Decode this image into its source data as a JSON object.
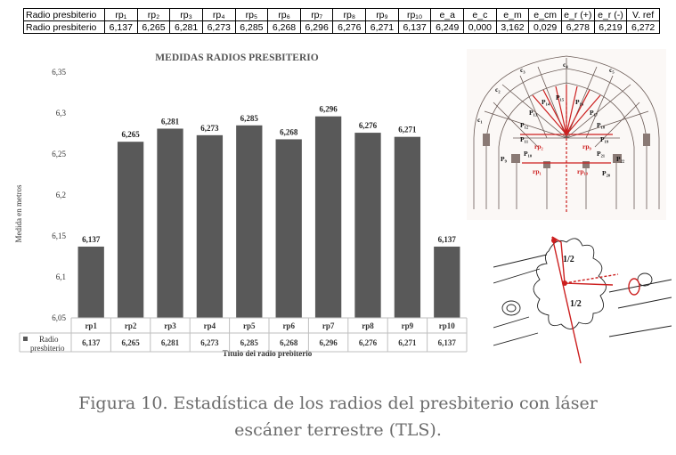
{
  "stats_table": {
    "headers": [
      "Radio presbiterio",
      "rp₁",
      "rp₂",
      "rp₃",
      "rp₄",
      "rp₅",
      "rp₆",
      "rp₇",
      "rp₈",
      "rp₉",
      "rp₁₀",
      "e_a",
      "e_c",
      "e_m",
      "e_cm",
      "e_r (+)",
      "e_r (-)",
      "V. ref"
    ],
    "row_label": "Radio presbiterio",
    "values": [
      "6,137",
      "6,265",
      "6,281",
      "6,273",
      "6,285",
      "6,268",
      "6,296",
      "6,276",
      "6,271",
      "6,137",
      "6,249",
      "0,000",
      "3,162",
      "0,029",
      "6,278",
      "6,219",
      "6,272"
    ]
  },
  "chart_data": {
    "type": "bar",
    "title": "MEDIDAS RADIOS PRESBITERIO",
    "xlabel": "Título del radio prebiterio",
    "ylabel": "Medida en metros",
    "categories": [
      "rp1",
      "rp2",
      "rp3",
      "rp4",
      "rp5",
      "rp6",
      "rp7",
      "rp8",
      "rp9",
      "rp10"
    ],
    "series": [
      {
        "name": "Radio presbiterio",
        "values": [
          6.137,
          6.265,
          6.281,
          6.273,
          6.285,
          6.268,
          6.296,
          6.276,
          6.271,
          6.137
        ]
      }
    ],
    "data_labels": [
      "6,137",
      "6,265",
      "6,281",
      "6,273",
      "6,285",
      "6,268",
      "6,296",
      "6,276",
      "6,271",
      "6,137"
    ],
    "legend_label_lines": [
      "Radio",
      "presbiterio"
    ],
    "ylim": [
      6.05,
      6.35
    ],
    "yticks": [
      6.05,
      6.1,
      6.15,
      6.2,
      6.25,
      6.3,
      6.35
    ],
    "ytick_labels": [
      "6,05",
      "6,1",
      "6,15",
      "6,2",
      "6,25",
      "6,3",
      "6,35"
    ],
    "grid": false,
    "legend": "data-table-below",
    "bar_color": "#595959"
  },
  "plan_labels": {
    "p_labels": [
      "P₁₄",
      "P₁₅",
      "P₁₆",
      "P₁₇",
      "P₁₃",
      "P₁₂",
      "P₁₈",
      "P₁₉",
      "P₁₁",
      "P₉",
      "P₁₀",
      "P₂₁",
      "P₂₂",
      "P₂₀"
    ],
    "rp_labels": [
      "rp₂",
      "rp₉",
      "rp₁",
      "rp₁₀"
    ],
    "c_labels": [
      "c₁",
      "c₂",
      "c₃",
      "c₄",
      "c₅"
    ],
    "fraction_labels": [
      "1/2",
      "1/2"
    ],
    "accent_color": "#cc1f1f"
  },
  "caption": {
    "line1": "Figura 10. Estadística de los radios del presbiterio con láser",
    "line2": "escáner terrestre (TLS)."
  }
}
